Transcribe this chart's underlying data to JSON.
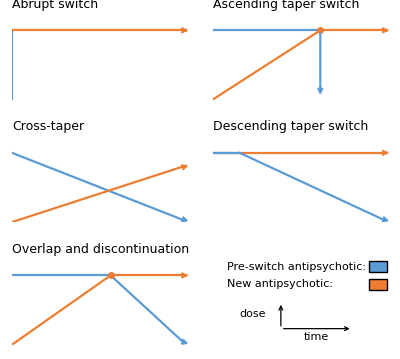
{
  "blue": "#5B9BD5",
  "orange": "#ED7D31",
  "axis_color": "#808080",
  "background": "#ffffff",
  "titles": [
    "Abrupt switch",
    "Ascending taper switch",
    "Cross-taper",
    "Descending taper switch",
    "Overlap and discontinuation",
    ""
  ],
  "legend_title1": "Pre-switch antipsychotic:",
  "legend_title2": "New antipsychotic:",
  "dose_label": "dose",
  "time_label": "time",
  "title_fontsize": 9,
  "label_fontsize": 8
}
